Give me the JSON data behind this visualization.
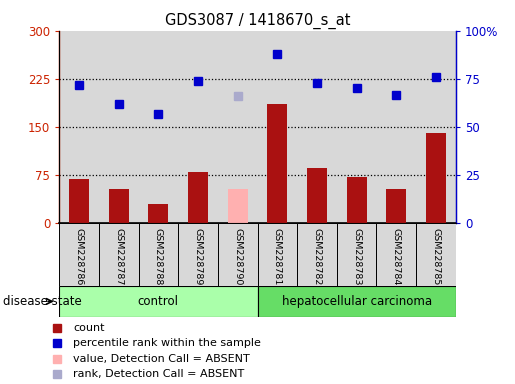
{
  "title": "GDS3087 / 1418670_s_at",
  "samples": [
    "GSM228786",
    "GSM228787",
    "GSM228788",
    "GSM228789",
    "GSM228790",
    "GSM228781",
    "GSM228782",
    "GSM228783",
    "GSM228784",
    "GSM228785"
  ],
  "groups": [
    "control",
    "control",
    "control",
    "control",
    "control",
    "hepatocellular carcinoma",
    "hepatocellular carcinoma",
    "hepatocellular carcinoma",
    "hepatocellular carcinoma",
    "hepatocellular carcinoma"
  ],
  "count_values": [
    68,
    52,
    30,
    80,
    null,
    185,
    85,
    72,
    52,
    140
  ],
  "count_absent": [
    null,
    null,
    null,
    null,
    52,
    null,
    null,
    null,
    null,
    null
  ],
  "rank_values": [
    215,
    185,
    170,
    222,
    null,
    263,
    218,
    210,
    200,
    228
  ],
  "rank_absent": [
    null,
    null,
    null,
    null,
    198,
    null,
    null,
    null,
    null,
    null
  ],
  "ylim_left": [
    0,
    300
  ],
  "ylim_right": [
    0,
    100
  ],
  "yticks_left": [
    0,
    75,
    150,
    225,
    300
  ],
  "yticks_right": [
    0,
    25,
    50,
    75,
    100
  ],
  "ytick_labels_left": [
    "0",
    "75",
    "150",
    "225",
    "300"
  ],
  "ytick_labels_right": [
    "0",
    "25",
    "50",
    "75",
    "100%"
  ],
  "hlines": [
    75,
    150,
    225
  ],
  "bar_color": "#aa1111",
  "bar_absent_color": "#ffb0b0",
  "rank_color": "#0000cc",
  "rank_absent_color": "#aaaacc",
  "control_color": "#aaffaa",
  "carcinoma_color": "#66dd66",
  "bar_width": 0.5,
  "group_label_control": "control",
  "group_label_carcinoma": "hepatocellular carcinoma",
  "disease_state_label": "disease state",
  "n_control": 5,
  "n_total": 10
}
